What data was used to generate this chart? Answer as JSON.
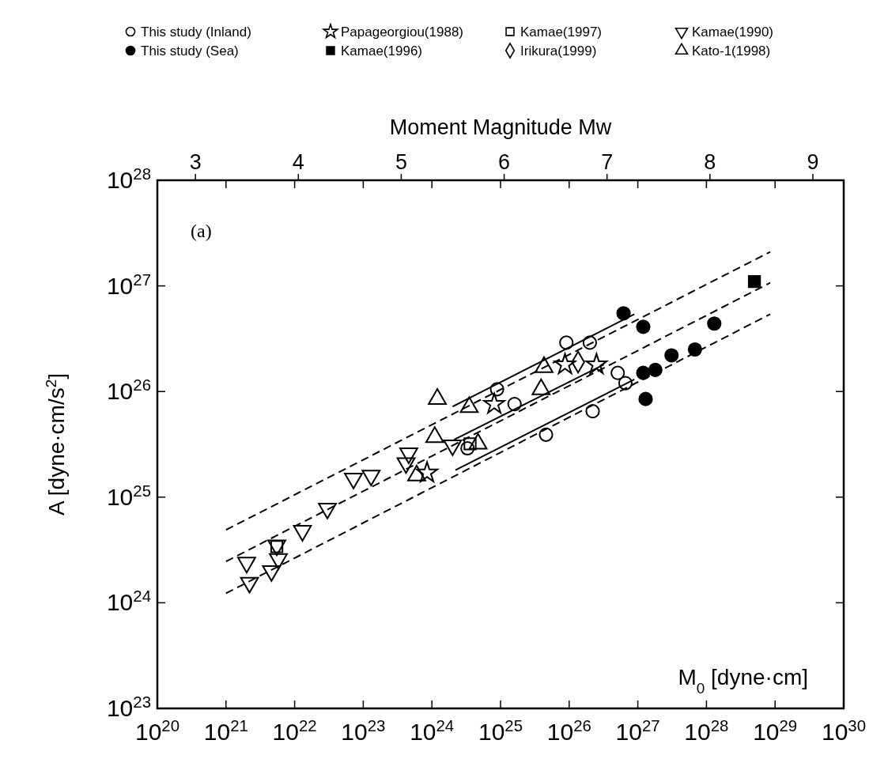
{
  "chart_data": {
    "type": "scatter",
    "xlabel": "M$_{0}$ [dyne·cm]",
    "ylabel": "A [dyne·cm/s$^{2}$]",
    "x2label": "Moment Magnitude Mw",
    "log": "xy",
    "xlim": [
      1e+20,
      1e+30
    ],
    "ylim": [
      1e+23,
      1e+28
    ],
    "xticks": [
      {
        "value": 1e+20,
        "label": "10$^{20}$"
      },
      {
        "value": 1e+21,
        "label": "10$^{21}$"
      },
      {
        "value": 1e+22,
        "label": "10$^{22}$"
      },
      {
        "value": 1e+23,
        "label": "10$^{23}$"
      },
      {
        "value": 1e+24,
        "label": "10$^{24}$"
      },
      {
        "value": 1e+25,
        "label": "10$^{25}$"
      },
      {
        "value": 1e+26,
        "label": "10$^{26}$"
      },
      {
        "value": 1e+27,
        "label": "10$^{27}$"
      },
      {
        "value": 1e+28,
        "label": "10$^{28}$"
      },
      {
        "value": 1e+29,
        "label": "10$^{29}$"
      },
      {
        "value": 1e+30,
        "label": "10$^{30}$"
      }
    ],
    "yticks": [
      {
        "value": 1e+23,
        "label": "10$^{23}$"
      },
      {
        "value": 1e+24,
        "label": "10$^{24}$"
      },
      {
        "value": 1e+25,
        "label": "10$^{25}$"
      },
      {
        "value": 1e+26,
        "label": "10$^{26}$"
      },
      {
        "value": 1e+27,
        "label": "10$^{27}$"
      },
      {
        "value": 1e+28,
        "label": "10$^{28}$"
      }
    ],
    "x2lim": [
      2.63,
      9.3
    ],
    "x2ticks": [
      3,
      4,
      5,
      6,
      7,
      8,
      9
    ],
    "annotations": [
      "(a)"
    ],
    "legend": "top",
    "grid": false,
    "series": [
      {
        "name": "This study (Inland)",
        "color": "#000000",
        "marker": "circle",
        "x": [
          9.1e+25,
          2e+26,
          8.9e+24,
          1.6e+25,
          5.1e+26,
          6.6e+26,
          2.2e+26,
          4.6e+25,
          3.3e+24
        ],
        "values": [
          2.9e+26,
          2.9e+26,
          1.05e+26,
          7.6e+25,
          1.5e+26,
          1.2e+26,
          6.5e+25,
          3.9e+25,
          2.9e+25
        ]
      },
      {
        "name": "This study (Sea)",
        "color": "#000000",
        "marker": "circle",
        "colors": [
          "#000000",
          "#000000",
          "#000000",
          "#000000",
          "#000000",
          "#000000",
          "#000000",
          "#000000"
        ],
        "x": [
          6.2e+26,
          1.2e+27,
          1.3e+28,
          6.8e+27,
          3.1e+27,
          1.8e+27,
          1.2e+27,
          1.3e+27
        ],
        "values": [
          5.5e+26,
          4.1e+26,
          4.4e+26,
          2.5e+26,
          2.2e+26,
          1.6e+26,
          1.5e+26,
          8.5e+25
        ]
      },
      {
        "name": "Papageorgiou(1988)",
        "color": "#000000",
        "marker": "star",
        "x": [
          8.1e+24,
          8.7e+25,
          2.5e+26,
          8.5e+23
        ],
        "values": [
          7.6e+25,
          1.8e+26,
          1.8e+26,
          1.7e+25
        ]
      },
      {
        "name": "Kamae(1996)",
        "color": "#000000",
        "marker": "square",
        "colors": [
          "#000000"
        ],
        "x": [
          5e+28
        ],
        "values": [
          1.1e+27
        ]
      },
      {
        "name": "Kamae(1997)",
        "color": "#000000",
        "marker": "square",
        "x": [
          3.6e+24,
          5.5e+21
        ],
        "values": [
          3.2e+25,
          3.4e+24
        ]
      },
      {
        "name": "Irikura(1999)",
        "color": "#000000",
        "marker": "diamond",
        "x": [
          1.35e+26
        ],
        "values": [
          1.9e+26
        ]
      },
      {
        "name": "Kamae(1990)",
        "color": "#000000",
        "marker": "triangle_down",
        "x": [
          2e+21,
          2.2e+21,
          4.6e+21,
          5.5e+21,
          5.8e+21,
          1.3e+22,
          3e+22,
          7.2e+22,
          1.3e+23,
          4.6e+23,
          4.2e+23,
          2e+24
        ],
        "values": [
          2.4e+24,
          1.55e+24,
          2e+24,
          3.5e+24,
          2.6e+24,
          4.8e+24,
          7.8e+24,
          1.5e+25,
          1.6e+25,
          2.6e+25,
          2.1e+25,
          3.1e+25
        ]
      },
      {
        "name": "Kato-1(1998)",
        "color": "#000000",
        "marker": "triangle",
        "x": [
          1.2e+24,
          3.5e+24,
          1.1e+24,
          4.3e+25,
          3.9e+25,
          4.7e+24,
          6e+23
        ],
        "values": [
          8.5e+25,
          7.1e+25,
          3.7e+25,
          1.7e+26,
          1.05e+26,
          3.2e+25,
          1.6e+25
        ]
      },
      {
        "type": "line",
        "color": "#000000",
        "line_style": "dashed",
        "x": [
          1e+21,
          8.5e+28
        ],
        "values": [
          4.9e+24,
          2.1e+27
        ]
      },
      {
        "type": "line",
        "color": "#000000",
        "line_style": "dashed",
        "x": [
          1e+21,
          8.5e+28
        ],
        "values": [
          2.46e+24,
          1.07e+27
        ]
      },
      {
        "type": "line",
        "color": "#000000",
        "line_style": "dashed",
        "x": [
          1e+21,
          8.5e+28
        ],
        "values": [
          1.23e+24,
          5.4e+26
        ]
      },
      {
        "type": "line",
        "color": "#000000",
        "line_style": "solid",
        "x": [
          2e+24,
          8.9e+26
        ],
        "values": [
          7.2e+25,
          5.4e+26
        ]
      },
      {
        "type": "line",
        "color": "#000000",
        "line_style": "solid",
        "x": [
          2.1e+24,
          3.2e+26
        ],
        "values": [
          3.5e+25,
          1.8e+26
        ]
      },
      {
        "type": "line",
        "color": "#000000",
        "line_style": "solid",
        "x": [
          2.2e+24,
          8.9e+26
        ],
        "values": [
          1.8e+25,
          1.3e+26
        ]
      }
    ]
  }
}
